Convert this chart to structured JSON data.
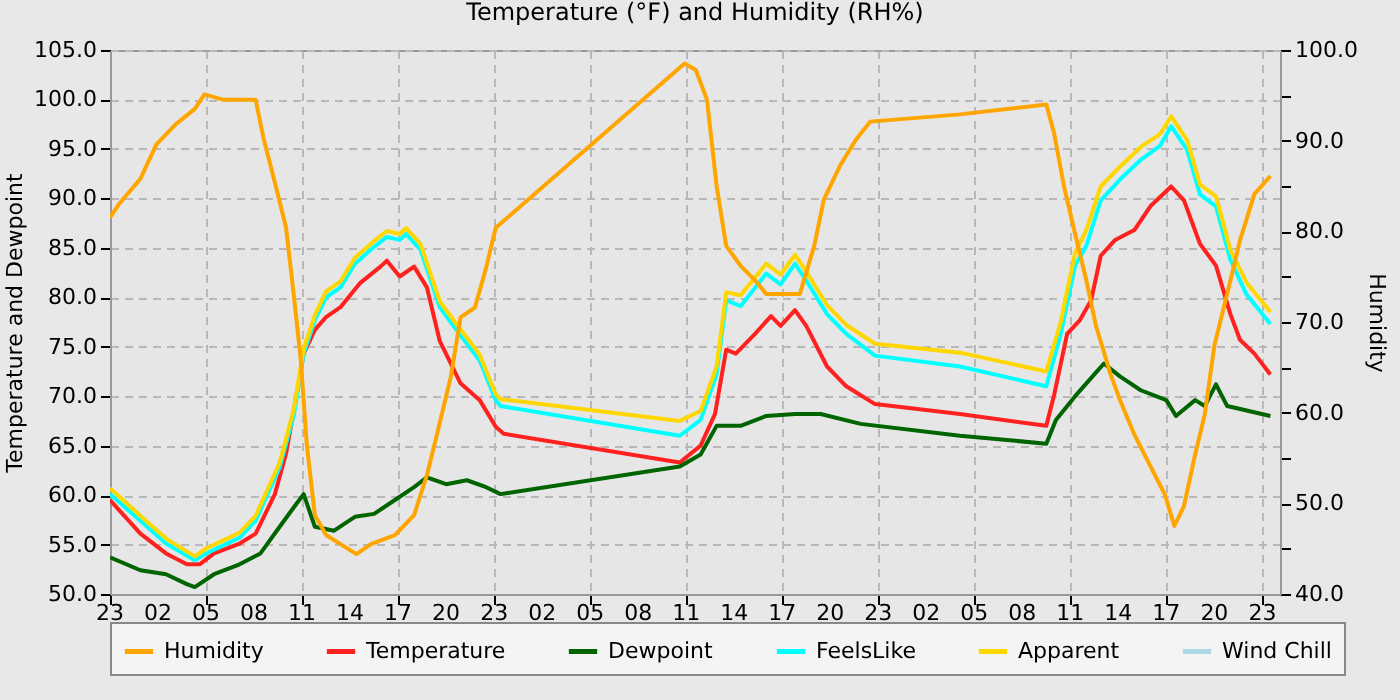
{
  "chart_data": {
    "type": "line",
    "title": "Temperature (°F) and Humidity (RH%)",
    "ylabel": "Temperature and Dewpoint",
    "y2label": "Humidity",
    "xlim": [
      "--01-01T23:00",
      "--01-05T00:06"
    ],
    "xticks": [
      {
        "value": "--01-01T23:00",
        "label": "23"
      },
      {
        "value": "--01-02T02:00",
        "label": "02"
      },
      {
        "value": "--01-02T05:00",
        "label": "05"
      },
      {
        "value": "--01-02T08:00",
        "label": "08"
      },
      {
        "value": "--01-02T11:00",
        "label": "11"
      },
      {
        "value": "--01-02T14:00",
        "label": "14"
      },
      {
        "value": "--01-02T17:00",
        "label": "17"
      },
      {
        "value": "--01-02T20:00",
        "label": "20"
      },
      {
        "value": "--01-02T23:00",
        "label": "23"
      },
      {
        "value": "--01-03T02:00",
        "label": "02"
      },
      {
        "value": "--01-03T05:00",
        "label": "05"
      },
      {
        "value": "--01-03T08:00",
        "label": "08"
      },
      {
        "value": "--01-03T11:00",
        "label": "11"
      },
      {
        "value": "--01-03T14:00",
        "label": "14"
      },
      {
        "value": "--01-03T17:00",
        "label": "17"
      },
      {
        "value": "--01-03T20:00",
        "label": "20"
      },
      {
        "value": "--01-03T23:00",
        "label": "23"
      },
      {
        "value": "--01-04T02:00",
        "label": "02"
      },
      {
        "value": "--01-04T05:00",
        "label": "05"
      },
      {
        "value": "--01-04T08:00",
        "label": "08"
      },
      {
        "value": "--01-04T11:00",
        "label": "11"
      },
      {
        "value": "--01-04T14:00",
        "label": "14"
      },
      {
        "value": "--01-04T17:00",
        "label": "17"
      },
      {
        "value": "--01-04T20:00",
        "label": "20"
      },
      {
        "value": "--01-04T23:00",
        "label": "23"
      }
    ],
    "ylim": [
      50,
      105
    ],
    "yticks": [
      {
        "value": 50,
        "label": "50.0"
      },
      {
        "value": 55,
        "label": "55.0"
      },
      {
        "value": 60,
        "label": "60.0"
      },
      {
        "value": 65,
        "label": "65.0"
      },
      {
        "value": 70,
        "label": "70.0"
      },
      {
        "value": 75,
        "label": "75.0"
      },
      {
        "value": 80,
        "label": "80.0"
      },
      {
        "value": 85,
        "label": "85.0"
      },
      {
        "value": 90,
        "label": "90.0"
      },
      {
        "value": 95,
        "label": "95.0"
      },
      {
        "value": 100,
        "label": "100.0"
      },
      {
        "value": 105,
        "label": "105.0"
      }
    ],
    "y2lim": [
      40,
      100
    ],
    "y2ticks": [
      {
        "value": 40,
        "label": "40.0"
      },
      {
        "value": 45,
        "label": null
      },
      {
        "value": 50,
        "label": "50.0"
      },
      {
        "value": 55,
        "label": null
      },
      {
        "value": 60,
        "label": "60.0"
      },
      {
        "value": 65,
        "label": null
      },
      {
        "value": 70,
        "label": "70.0"
      },
      {
        "value": 75,
        "label": null
      },
      {
        "value": 80,
        "label": "80.0"
      },
      {
        "value": 85,
        "label": null
      },
      {
        "value": 90,
        "label": "90.0"
      },
      {
        "value": 95,
        "label": null
      },
      {
        "value": 100,
        "label": "100.0"
      }
    ],
    "grid": true,
    "legend": "bottom",
    "line_style": "solid",
    "marker": "none",
    "series": [
      {
        "name": "Humidity",
        "color": "#ffa500",
        "axis": "y2",
        "x": [
          "--01-01T23:00",
          "--01-01T23:36",
          "--01-02T00:54",
          "--01-02T01:54",
          "--01-02T03:06",
          "--01-02T04:18",
          "--01-02T04:54",
          "--01-02T06:06",
          "--01-02T08:06",
          "--01-02T08:36",
          "--01-02T09:24",
          "--01-02T10:00",
          "--01-02T10:30",
          "--01-02T10:54",
          "--01-02T11:18",
          "--01-02T11:48",
          "--01-02T12:30",
          "--01-02T13:24",
          "--01-02T14:24",
          "--01-02T15:18",
          "--01-02T16:48",
          "--01-02T18:00",
          "--01-02T18:48",
          "--01-02T19:24",
          "--01-02T20:18",
          "--01-02T20:54",
          "--01-02T21:48",
          "--01-02T22:30",
          "--01-02T23:06",
          "--01-03T10:54",
          "--01-03T11:36",
          "--01-03T12:18",
          "--01-03T12:54",
          "--01-03T13:30",
          "--01-03T14:24",
          "--01-03T15:18",
          "--01-03T16:00",
          "--01-03T17:18",
          "--01-03T18:06",
          "--01-03T19:00",
          "--01-03T19:36",
          "--01-03T20:36",
          "--01-03T21:36",
          "--01-03T22:30",
          "--01-04T04:06",
          "--01-04T09:30",
          "--01-04T10:00",
          "--01-04T10:36",
          "--01-04T11:18",
          "--01-04T12:00",
          "--01-04T12:36",
          "--01-04T13:30",
          "--01-04T14:06",
          "--01-04T15:00",
          "--01-04T16:00",
          "--01-04T16:54",
          "--01-04T17:30",
          "--01-04T18:06",
          "--01-04T18:48",
          "--01-04T19:24",
          "--01-04T20:00",
          "--01-04T20:48",
          "--01-04T21:36",
          "--01-04T22:30",
          "--01-04T23:30"
        ],
        "values": [
          81.5,
          83.1,
          85.8,
          89.6,
          91.8,
          93.5,
          95.1,
          94.5,
          94.5,
          90.2,
          84.7,
          80.4,
          72.7,
          66.2,
          56.4,
          48.7,
          46.5,
          45.5,
          44.4,
          45.5,
          46.5,
          48.7,
          53.1,
          57.4,
          64,
          70.5,
          71.6,
          76,
          80.4,
          98.5,
          97.8,
          94.5,
          85,
          78.4,
          76.2,
          74.6,
          73.1,
          73.1,
          73.1,
          78.4,
          83.5,
          87.2,
          90.1,
          92.1,
          92.9,
          94,
          90.7,
          85,
          79.7,
          74.6,
          69.6,
          64.3,
          61.4,
          57.6,
          54.1,
          51,
          47.5,
          49.7,
          55.4,
          59.8,
          67.4,
          73.1,
          79,
          84.1,
          86.1
        ]
      },
      {
        "name": "Temperature",
        "color": "#ff2020",
        "x": [
          "--01-01T23:00",
          "--01-02T00:54",
          "--01-02T02:30",
          "--01-02T03:48",
          "--01-02T04:36",
          "--01-02T05:30",
          "--01-02T07:06",
          "--01-02T08:06",
          "--01-02T09:18",
          "--01-02T10:00",
          "--01-02T10:36",
          "--01-02T11:06",
          "--01-02T11:48",
          "--01-02T12:30",
          "--01-02T13:24",
          "--01-02T14:36",
          "--01-02T15:54",
          "--01-02T16:18",
          "--01-02T17:06",
          "--01-02T18:00",
          "--01-02T18:48",
          "--01-02T19:36",
          "--01-02T20:54",
          "--01-02T22:06",
          "--01-02T23:06",
          "--01-02T23:36",
          "--01-03T10:36",
          "--01-03T11:54",
          "--01-03T12:48",
          "--01-03T13:30",
          "--01-03T14:06",
          "--01-03T15:18",
          "--01-03T16:18",
          "--01-03T16:54",
          "--01-03T17:48",
          "--01-03T18:30",
          "--01-03T19:48",
          "--01-03T21:00",
          "--01-03T22:48",
          "--01-04T04:06",
          "--01-04T09:30",
          "--01-04T10:00",
          "--01-04T10:48",
          "--01-04T11:36",
          "--01-04T12:18",
          "--01-04T12:54",
          "--01-04T13:48",
          "--01-04T15:00",
          "--01-04T16:00",
          "--01-04T17:18",
          "--01-04T18:06",
          "--01-04T19:06",
          "--01-04T20:06",
          "--01-04T21:00",
          "--01-04T21:36",
          "--01-04T22:30",
          "--01-04T23:30"
        ],
        "values": [
          59.5,
          56.1,
          54.1,
          53,
          53,
          54.1,
          55.1,
          56.1,
          60.1,
          64.2,
          69.6,
          74.3,
          76.7,
          78,
          79,
          81.4,
          83.1,
          83.7,
          82.1,
          83.1,
          81,
          75.6,
          71.3,
          69.6,
          66.9,
          66.2,
          63.3,
          65,
          68.2,
          74.7,
          74.3,
          76.3,
          78.1,
          77.1,
          78.7,
          77.1,
          73,
          71,
          69.2,
          68.2,
          67,
          70.2,
          76.3,
          77.7,
          79.7,
          84.2,
          85.8,
          86.8,
          89.2,
          91.2,
          89.8,
          85.4,
          83.2,
          78.3,
          75.7,
          74.3,
          72.2
        ]
      },
      {
        "name": "Dewpoint",
        "color": "#006400",
        "x": [
          "--01-01T23:00",
          "--01-02T00:54",
          "--01-02T02:30",
          "--01-02T03:48",
          "--01-02T04:18",
          "--01-02T05:30",
          "--01-02T07:06",
          "--01-02T08:24",
          "--01-02T09:36",
          "--01-02T10:30",
          "--01-02T11:06",
          "--01-02T11:48",
          "--01-02T13:00",
          "--01-02T14:18",
          "--01-02T15:30",
          "--01-02T16:48",
          "--01-02T18:00",
          "--01-02T18:48",
          "--01-02T20:00",
          "--01-02T21:18",
          "--01-02T22:30",
          "--01-02T23:24",
          "--01-03T10:36",
          "--01-03T11:54",
          "--01-03T12:54",
          "--01-03T14:24",
          "--01-03T16:00",
          "--01-03T17:48",
          "--01-03T19:24",
          "--01-03T21:54",
          "--01-04T04:06",
          "--01-04T09:30",
          "--01-04T10:06",
          "--01-04T11:18",
          "--01-04T12:30",
          "--01-04T13:06",
          "--01-04T14:06",
          "--01-04T15:24",
          "--01-04T17:00",
          "--01-04T17:36",
          "--01-04T18:48",
          "--01-04T19:24",
          "--01-04T20:06",
          "--01-04T20:48",
          "--01-04T23:30"
        ],
        "values": [
          53.7,
          52.4,
          52,
          51,
          50.7,
          52,
          53,
          54.1,
          56.8,
          58.8,
          60.1,
          56.8,
          56.4,
          57.8,
          58.1,
          59.5,
          60.8,
          61.8,
          61.1,
          61.5,
          60.8,
          60.1,
          62.9,
          64.1,
          67,
          67,
          68,
          68.2,
          68.2,
          67.2,
          66,
          65.2,
          67.6,
          70,
          72.2,
          73.3,
          72,
          70.6,
          69.6,
          68,
          69.6,
          69,
          71.2,
          69,
          68
        ]
      },
      {
        "name": "FeelsLike",
        "color": "#00ffff",
        "x": [
          "--01-01T23:00",
          "--01-02T00:54",
          "--01-02T02:30",
          "--01-02T04:18",
          "--01-02T05:00",
          "--01-02T07:06",
          "--01-02T08:06",
          "--01-02T09:36",
          "--01-02T10:30",
          "--01-02T11:06",
          "--01-02T11:48",
          "--01-02T12:30",
          "--01-02T13:24",
          "--01-02T14:18",
          "--01-02T15:30",
          "--01-02T16:18",
          "--01-02T17:06",
          "--01-02T17:30",
          "--01-02T18:24",
          "--01-02T19:36",
          "--01-02T20:30",
          "--01-02T22:06",
          "--01-02T23:06",
          "--01-02T23:24",
          "--01-03T10:36",
          "--01-03T11:54",
          "--01-03T12:54",
          "--01-03T13:30",
          "--01-03T14:24",
          "--01-03T16:00",
          "--01-03T16:54",
          "--01-03T17:48",
          "--01-03T18:30",
          "--01-03T19:48",
          "--01-03T21:00",
          "--01-03T22:48",
          "--01-04T04:06",
          "--01-04T09:30",
          "--01-04T10:24",
          "--01-04T11:18",
          "--01-04T12:00",
          "--01-04T12:54",
          "--01-04T14:06",
          "--01-04T15:24",
          "--01-04T16:36",
          "--01-04T17:18",
          "--01-04T18:18",
          "--01-04T19:06",
          "--01-04T20:06",
          "--01-04T21:00",
          "--01-04T22:00",
          "--01-04T23:30"
        ],
        "values": [
          60.1,
          57.4,
          55.1,
          53.4,
          54.1,
          55.7,
          57.4,
          62.8,
          68.2,
          74.3,
          77.7,
          80,
          81,
          83.4,
          85.1,
          86.1,
          85.8,
          86.4,
          84.8,
          79,
          77,
          73.6,
          69.6,
          69,
          66,
          67.6,
          72.2,
          79.7,
          79.1,
          82.4,
          81.3,
          83.4,
          81.7,
          78.3,
          76.3,
          74.1,
          73,
          71,
          76.3,
          83.2,
          85.2,
          89.8,
          91.9,
          93.9,
          95.3,
          97.3,
          94.9,
          90.4,
          89.2,
          83.8,
          80.3,
          77.3
        ]
      },
      {
        "name": "Apparent",
        "color": "#ffd700",
        "x": [
          "--01-01T23:00",
          "--01-02T00:54",
          "--01-02T02:30",
          "--01-02T04:18",
          "--01-02T05:00",
          "--01-02T07:06",
          "--01-02T08:06",
          "--01-02T09:36",
          "--01-02T10:30",
          "--01-02T11:06",
          "--01-02T11:48",
          "--01-02T12:30",
          "--01-02T13:24",
          "--01-02T14:18",
          "--01-02T15:30",
          "--01-02T16:18",
          "--01-02T17:06",
          "--01-02T17:30",
          "--01-02T18:24",
          "--01-02T19:36",
          "--01-02T20:30",
          "--01-02T22:06",
          "--01-02T23:06",
          "--01-02T23:24",
          "--01-03T10:36",
          "--01-03T11:54",
          "--01-03T12:54",
          "--01-03T13:30",
          "--01-03T14:24",
          "--01-03T16:00",
          "--01-03T16:54",
          "--01-03T17:48",
          "--01-03T18:30",
          "--01-03T19:48",
          "--01-03T21:00",
          "--01-03T22:48",
          "--01-04T04:06",
          "--01-04T09:30",
          "--01-04T10:24",
          "--01-04T11:18",
          "--01-04T12:00",
          "--01-04T12:54",
          "--01-04T14:06",
          "--01-04T15:24",
          "--01-04T16:36",
          "--01-04T17:18",
          "--01-04T18:18",
          "--01-04T19:06",
          "--01-04T20:06",
          "--01-04T21:00",
          "--01-04T22:00",
          "--01-04T23:30"
        ],
        "values": [
          60.7,
          57.9,
          55.6,
          53.8,
          54.6,
          56.2,
          57.9,
          63.3,
          68.8,
          74.8,
          78.2,
          80.6,
          81.6,
          84,
          85.7,
          86.7,
          86.4,
          87,
          85.4,
          79.6,
          77.6,
          74.2,
          70.2,
          69.7,
          67.5,
          68.5,
          73,
          80.5,
          80.2,
          83.4,
          82.3,
          84.3,
          82.6,
          79.2,
          77.2,
          75.3,
          74.4,
          72.5,
          77.5,
          84.5,
          86.8,
          91.2,
          93.2,
          95.2,
          96.5,
          98.3,
          95.9,
          91.4,
          90.2,
          84.8,
          81.5,
          78.5
        ]
      },
      {
        "name": "Wind Chill",
        "color": "#add8e6"
      }
    ]
  }
}
